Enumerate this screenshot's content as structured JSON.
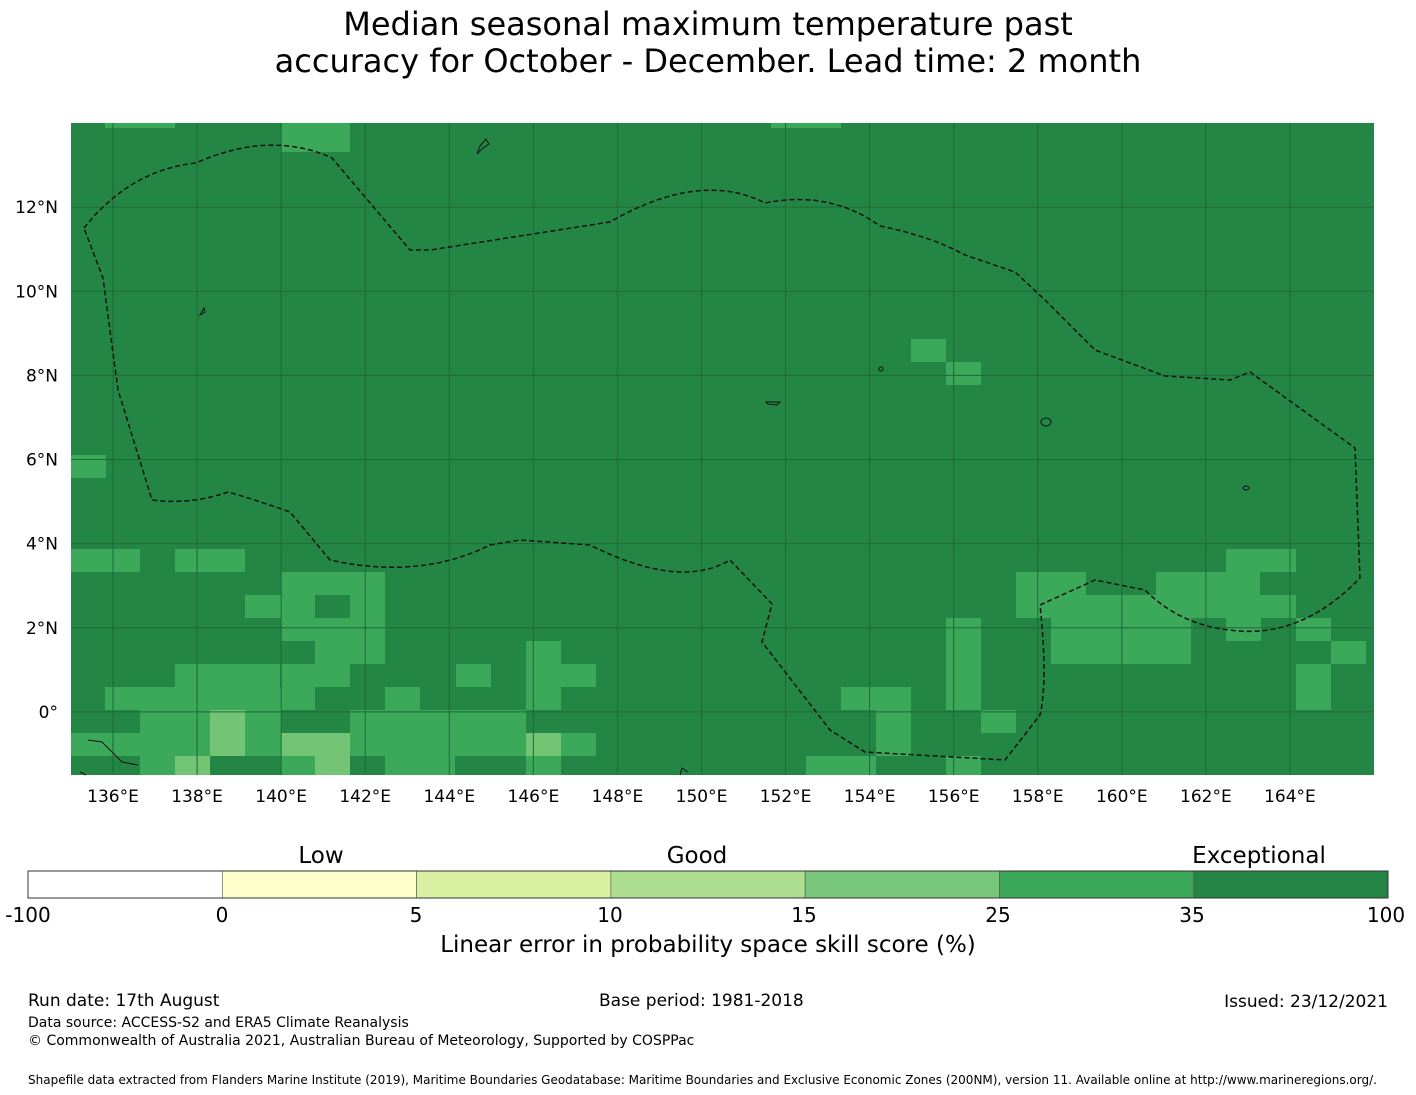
{
  "title_line1": "Median seasonal maximum temperature past",
  "title_line2": "accuracy for October - December. Lead time: 2 month",
  "map": {
    "lon_range": [
      135.0,
      166.0
    ],
    "lat_range": [
      -1.5,
      14.0
    ],
    "lon_ticks": [
      "136°E",
      "138°E",
      "140°E",
      "142°E",
      "144°E",
      "146°E",
      "148°E",
      "150°E",
      "152°E",
      "154°E",
      "156°E",
      "158°E",
      "160°E",
      "162°E",
      "164°E"
    ],
    "lat_ticks": [
      "12°N",
      "10°N",
      "8°N",
      "6°N",
      "4°N",
      "2°N",
      "0°"
    ],
    "background_color": "#248645",
    "cell_colors": {
      "35": "#3ba85a",
      "25": "#74c476",
      "15": "#addf90",
      "top": "#248645"
    }
  },
  "colorbar": {
    "categories": [
      "Low",
      "Good",
      "Exceptional"
    ],
    "ticks": [
      "-100",
      "0",
      "5",
      "10",
      "15",
      "25",
      "35",
      "100"
    ],
    "colors": [
      "#ffffff",
      "#ffffcc",
      "#d9f0a3",
      "#addd8e",
      "#78c679",
      "#3ba85a",
      "#238443"
    ],
    "label": "Linear error in probability space skill score (%)"
  },
  "footer": {
    "run_date": "Run date: 17th August",
    "base_period": "Base period: 1981-2018",
    "issued": "Issued: 23/12/2021",
    "data_source": "Data source: ACCESS-S2 and ERA5 Climate Reanalysis",
    "copyright": "© Commonwealth of Australia 2021, Australian Bureau of Meteorology, Supported by COSPPac",
    "shapefile": "Shapefile data extracted from Flanders Marine Institute (2019), Maritime Boundaries Geodatabase: Maritime Boundaries and Exclusive Economic Zones (200NM), version 11. Available online at http://www.marineregions.org/."
  }
}
